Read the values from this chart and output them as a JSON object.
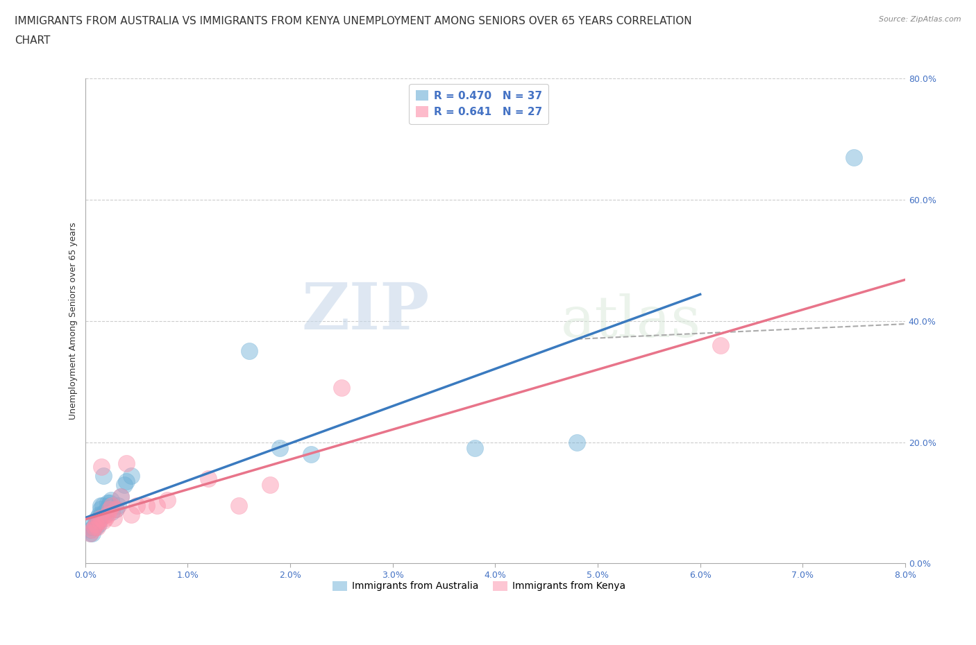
{
  "title_line1": "IMMIGRANTS FROM AUSTRALIA VS IMMIGRANTS FROM KENYA UNEMPLOYMENT AMONG SENIORS OVER 65 YEARS CORRELATION",
  "title_line2": "CHART",
  "source": "Source: ZipAtlas.com",
  "ylabel": "Unemployment Among Seniors over 65 years",
  "xlim": [
    0.0,
    0.08
  ],
  "ylim": [
    0.0,
    0.8
  ],
  "xticks": [
    0.0,
    0.01,
    0.02,
    0.03,
    0.04,
    0.05,
    0.06,
    0.07,
    0.08
  ],
  "yticks": [
    0.0,
    0.2,
    0.4,
    0.6,
    0.8
  ],
  "right_ytick_labels": [
    "0.0%",
    "20.0%",
    "40.0%",
    "60.0%",
    "80.0%"
  ],
  "australia_color": "#6baed6",
  "kenya_color": "#fc8fa9",
  "australia_line_color": "#3a7abf",
  "kenya_line_color": "#e8748a",
  "legend_R_australia": "R = 0.470",
  "legend_N_australia": "N = 37",
  "legend_R_kenya": "R = 0.641",
  "legend_N_kenya": "N = 27",
  "australia_x": [
    0.0005,
    0.0005,
    0.0005,
    0.0007,
    0.0008,
    0.001,
    0.001,
    0.001,
    0.0012,
    0.0013,
    0.0013,
    0.0014,
    0.0015,
    0.0015,
    0.0016,
    0.0017,
    0.0018,
    0.0019,
    0.002,
    0.0021,
    0.0022,
    0.0023,
    0.0024,
    0.0025,
    0.0026,
    0.003,
    0.0032,
    0.0035,
    0.0038,
    0.004,
    0.0045,
    0.016,
    0.019,
    0.022,
    0.038,
    0.048,
    0.075
  ],
  "australia_y": [
    0.05,
    0.055,
    0.06,
    0.05,
    0.06,
    0.06,
    0.065,
    0.07,
    0.075,
    0.065,
    0.07,
    0.08,
    0.095,
    0.09,
    0.08,
    0.095,
    0.145,
    0.085,
    0.08,
    0.09,
    0.1,
    0.095,
    0.1,
    0.105,
    0.085,
    0.09,
    0.095,
    0.11,
    0.13,
    0.135,
    0.145,
    0.35,
    0.19,
    0.18,
    0.19,
    0.2,
    0.67
  ],
  "kenya_x": [
    0.0005,
    0.0007,
    0.0009,
    0.001,
    0.0012,
    0.0014,
    0.0015,
    0.0016,
    0.0018,
    0.002,
    0.0022,
    0.0024,
    0.0026,
    0.0028,
    0.003,
    0.0035,
    0.004,
    0.0045,
    0.005,
    0.006,
    0.007,
    0.008,
    0.012,
    0.015,
    0.018,
    0.025,
    0.062
  ],
  "kenya_y": [
    0.05,
    0.055,
    0.06,
    0.065,
    0.06,
    0.07,
    0.075,
    0.16,
    0.07,
    0.075,
    0.08,
    0.09,
    0.095,
    0.075,
    0.09,
    0.11,
    0.165,
    0.08,
    0.095,
    0.095,
    0.095,
    0.105,
    0.14,
    0.095,
    0.13,
    0.29,
    0.36
  ],
  "background_color": "#ffffff",
  "watermark_zip": "ZIP",
  "watermark_atlas": "atlas",
  "grid_color": "#cccccc",
  "title_fontsize": 11,
  "axis_label_fontsize": 9,
  "tick_fontsize": 9,
  "legend_fontsize": 11,
  "source_fontsize": 8
}
